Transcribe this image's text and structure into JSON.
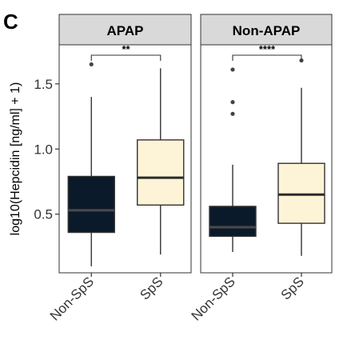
{
  "panel_label": "C",
  "chart_data": {
    "type": "boxplot",
    "ylabel": "log10(Hepcidin [ng/ml] + 1)",
    "ylim": [
      0.05,
      1.8
    ],
    "yticks": [
      0.5,
      1.0,
      1.5
    ],
    "ytick_labels": [
      "0.5",
      "1.0",
      "1.5"
    ],
    "categories": [
      "Non-SpS",
      "SpS"
    ],
    "colors": {
      "Non-SpS": "#0b1a2b",
      "SpS": "#fdf3d6",
      "median_nonsps": "#4a4a4a",
      "median_sps": "#2a2a2a",
      "strip_bg": "#d9d9d9"
    },
    "facets": [
      {
        "name": "APAP",
        "significance": "**",
        "boxes": [
          {
            "group": "Non-SpS",
            "min": 0.1,
            "q1": 0.36,
            "median": 0.53,
            "q3": 0.79,
            "max": 1.4,
            "outliers": [
              1.65
            ]
          },
          {
            "group": "SpS",
            "min": 0.19,
            "q1": 0.57,
            "median": 0.78,
            "q3": 1.07,
            "max": 1.62,
            "outliers": []
          }
        ]
      },
      {
        "name": "Non-APAP",
        "significance": "****",
        "boxes": [
          {
            "group": "Non-SpS",
            "min": 0.21,
            "q1": 0.33,
            "median": 0.4,
            "q3": 0.56,
            "max": 0.88,
            "outliers": [
              1.27,
              1.36,
              1.61
            ]
          },
          {
            "group": "SpS",
            "min": 0.18,
            "q1": 0.43,
            "median": 0.65,
            "q3": 0.89,
            "max": 1.47,
            "outliers": [
              1.68
            ]
          }
        ]
      }
    ]
  }
}
